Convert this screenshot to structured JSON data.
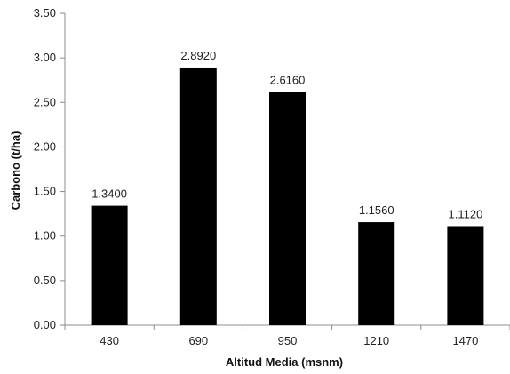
{
  "chart_data": {
    "type": "bar",
    "categories": [
      "430",
      "690",
      "950",
      "1210",
      "1470"
    ],
    "values": [
      1.34,
      2.892,
      2.616,
      1.156,
      1.112
    ],
    "value_labels": [
      "1.3400",
      "2.8920",
      "2.6160",
      "1.1560",
      "1.1120"
    ],
    "title": "",
    "xlabel": "Altitud Media (msnm)",
    "ylabel": "Carbono (t/ha)",
    "ylim": [
      0,
      3.5
    ],
    "yticks": [
      "0.00",
      "0.50",
      "1.00",
      "1.50",
      "2.00",
      "2.50",
      "3.00",
      "3.50"
    ],
    "grid": false,
    "legend": "none",
    "bar_color": "#000000",
    "axis_color": "#8c8c8c"
  }
}
